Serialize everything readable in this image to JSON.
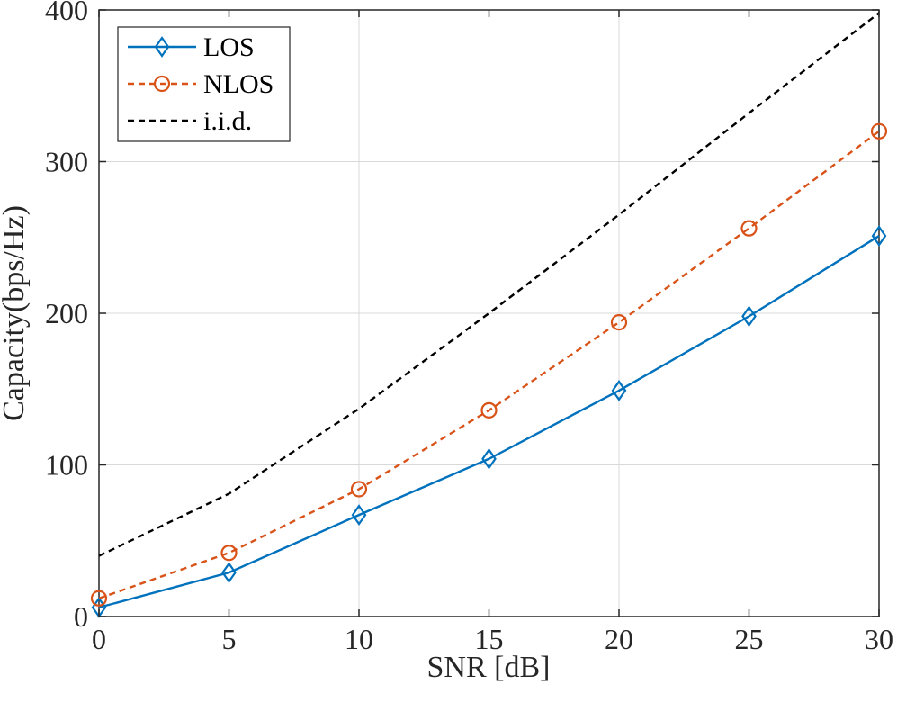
{
  "chart_data": {
    "type": "line",
    "title": "",
    "xlabel": "SNR [dB]",
    "ylabel": "Capacity(bps/Hz)",
    "xlim": [
      0,
      30
    ],
    "ylim": [
      0,
      400
    ],
    "xticks": [
      0,
      5,
      10,
      15,
      20,
      25,
      30
    ],
    "yticks": [
      0,
      100,
      200,
      300,
      400
    ],
    "xtick_labels": [
      "0",
      "5",
      "10",
      "15",
      "20",
      "25",
      "30"
    ],
    "ytick_labels": [
      "0",
      "100",
      "200",
      "300",
      "400"
    ],
    "grid": true,
    "legend_position": "top-left",
    "x": [
      0,
      5,
      10,
      15,
      20,
      25,
      30
    ],
    "series": [
      {
        "name": "LOS",
        "color": "#0072bd",
        "line_style": "solid",
        "marker": "diamond",
        "values": [
          6,
          29,
          67,
          104,
          149,
          198,
          251
        ]
      },
      {
        "name": "NLOS",
        "color": "#d95319",
        "line_style": "dashed",
        "marker": "circle",
        "values": [
          12,
          42,
          84,
          136,
          194,
          256,
          320
        ]
      },
      {
        "name": "i.i.d.",
        "color": "#000000",
        "line_style": "dashed",
        "marker": "none",
        "values": [
          40,
          81,
          137,
          200,
          265,
          332,
          398
        ]
      }
    ]
  }
}
